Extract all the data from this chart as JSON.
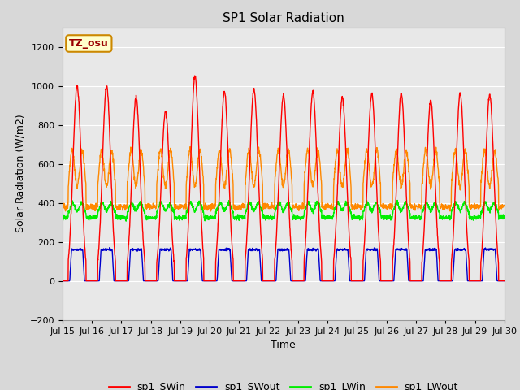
{
  "title": "SP1 Solar Radiation",
  "xlabel": "Time",
  "ylabel": "Solar Radiation (W/m2)",
  "ylim": [
    -200,
    1300
  ],
  "yticks": [
    -200,
    0,
    200,
    400,
    600,
    800,
    1000,
    1200
  ],
  "x_tick_labels": [
    "Jul 15",
    "Jul 16",
    "Jul 17",
    "Jul 18",
    "Jul 19",
    "Jul 20",
    "Jul 21",
    "Jul 22",
    "Jul 23",
    "Jul 24",
    "Jul 25",
    "Jul 26",
    "Jul 27",
    "Jul 28",
    "Jul 29",
    "Jul 30"
  ],
  "annotation_text": "TZ_osu",
  "annotation_bg": "#ffffcc",
  "annotation_border": "#cc8800",
  "colors": {
    "sp1_SWin": "#ff0000",
    "sp1_SWout": "#0000cc",
    "sp1_LWin": "#00ee00",
    "sp1_LWout": "#ff8800"
  },
  "background_color": "#e8e8e8",
  "grid_color": "#ffffff",
  "title_fontsize": 11,
  "label_fontsize": 9,
  "tick_fontsize": 8,
  "legend_fontsize": 9,
  "sw_peaks": [
    1000,
    1000,
    940,
    870,
    1050,
    970,
    985,
    950,
    970,
    940,
    960,
    960,
    920,
    960,
    950
  ],
  "n_days": 15,
  "pts_per_day": 144
}
